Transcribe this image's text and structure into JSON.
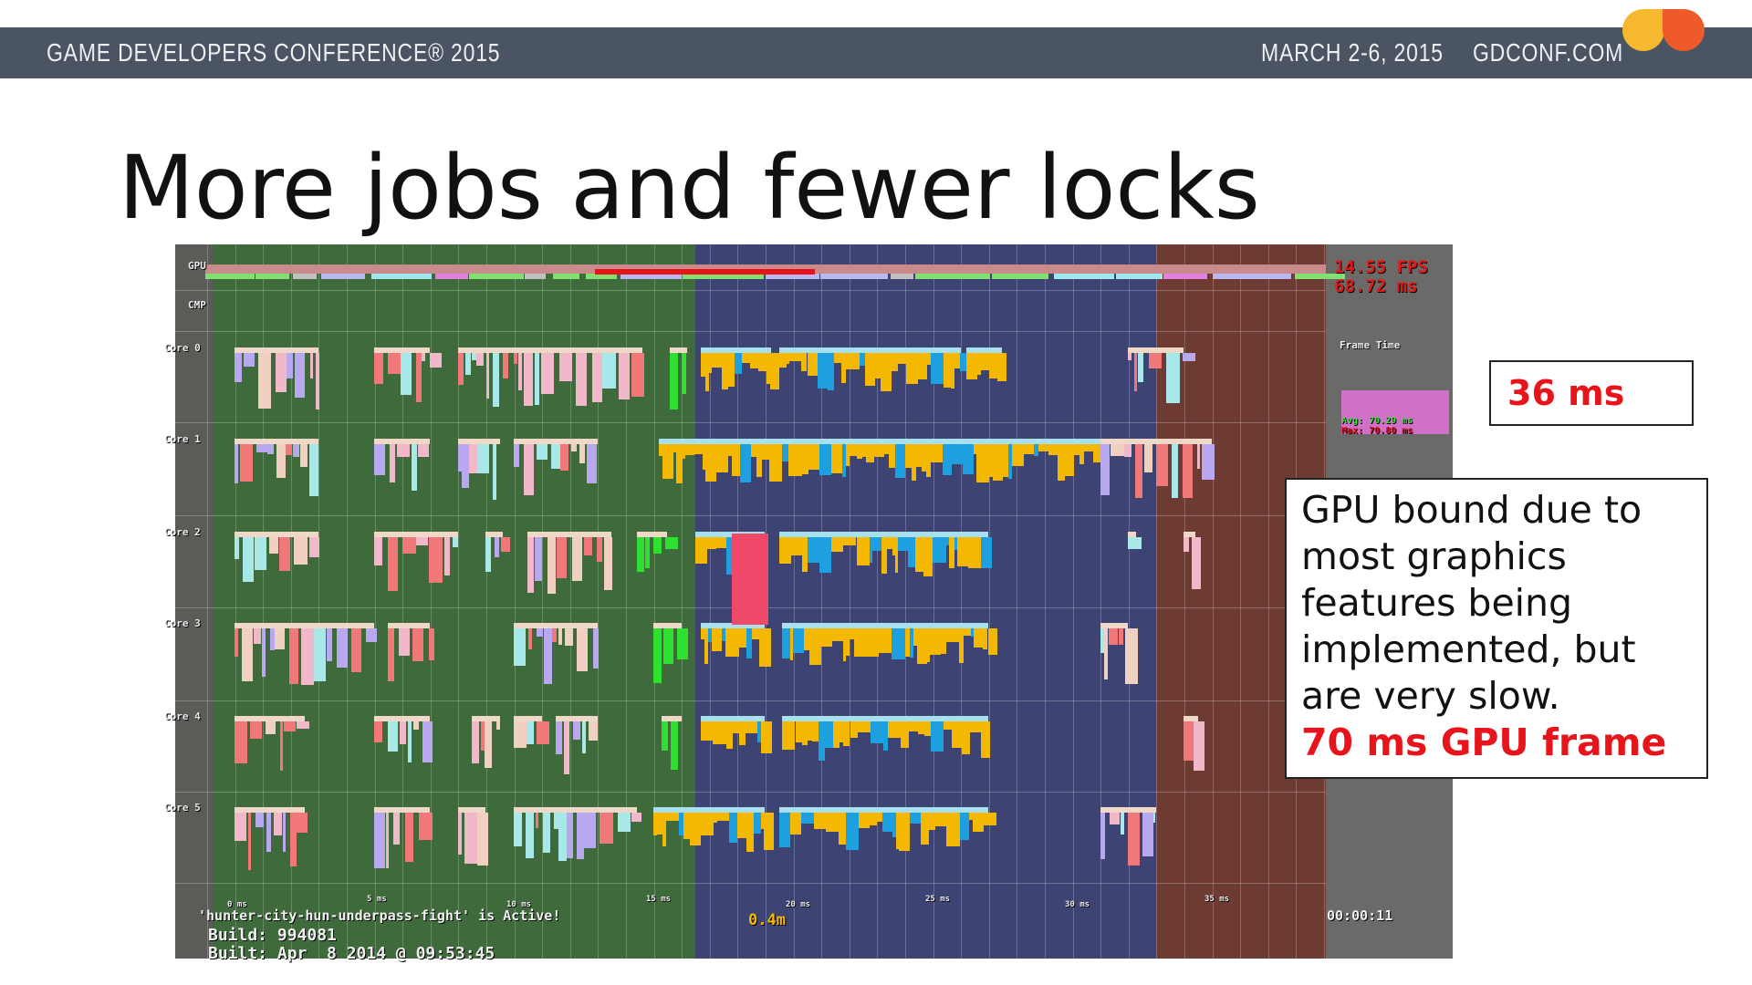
{
  "header": {
    "conference": "GAME DEVELOPERS CONFERENCE® 2015",
    "dates": "MARCH 2-6, 2015",
    "site": "GDCONF.COM",
    "logo_colors": [
      "#f5b82e",
      "#ef5a2a"
    ],
    "bar_color": "#4a5462"
  },
  "slide": {
    "title": "More jobs and fewer locks"
  },
  "profiler": {
    "rows": [
      "GPU",
      "CMP",
      "Core 0",
      "Core 1",
      "Core 2",
      "Core 3",
      "Core 4",
      "Core 5"
    ],
    "fps": "14.55 FPS",
    "frame_ms": "68.72 ms",
    "frame_time_label": "Frame Time",
    "avg": "Avg: 70.29 ms",
    "max": "Max: 70.80 ms",
    "ticks": [
      "0 ms",
      "5 ms",
      "10 ms",
      "15 ms",
      "20 ms",
      "25 ms",
      "30 ms",
      "35 ms"
    ],
    "active": "'hunter-city-hun-underpass-fight' is Active!",
    "build": "Build: 994081",
    "built": "Built: Apr  8 2014 @ 09:53:45",
    "distance": "0.4m",
    "timer": "00:00:11"
  },
  "callouts": {
    "cpu_time": "36 ms",
    "gpu_note": "GPU bound due to most graphics features being implemented, but are very slow.",
    "gpu_frame": "70 ms GPU frame",
    "accent": "#e8141b"
  }
}
